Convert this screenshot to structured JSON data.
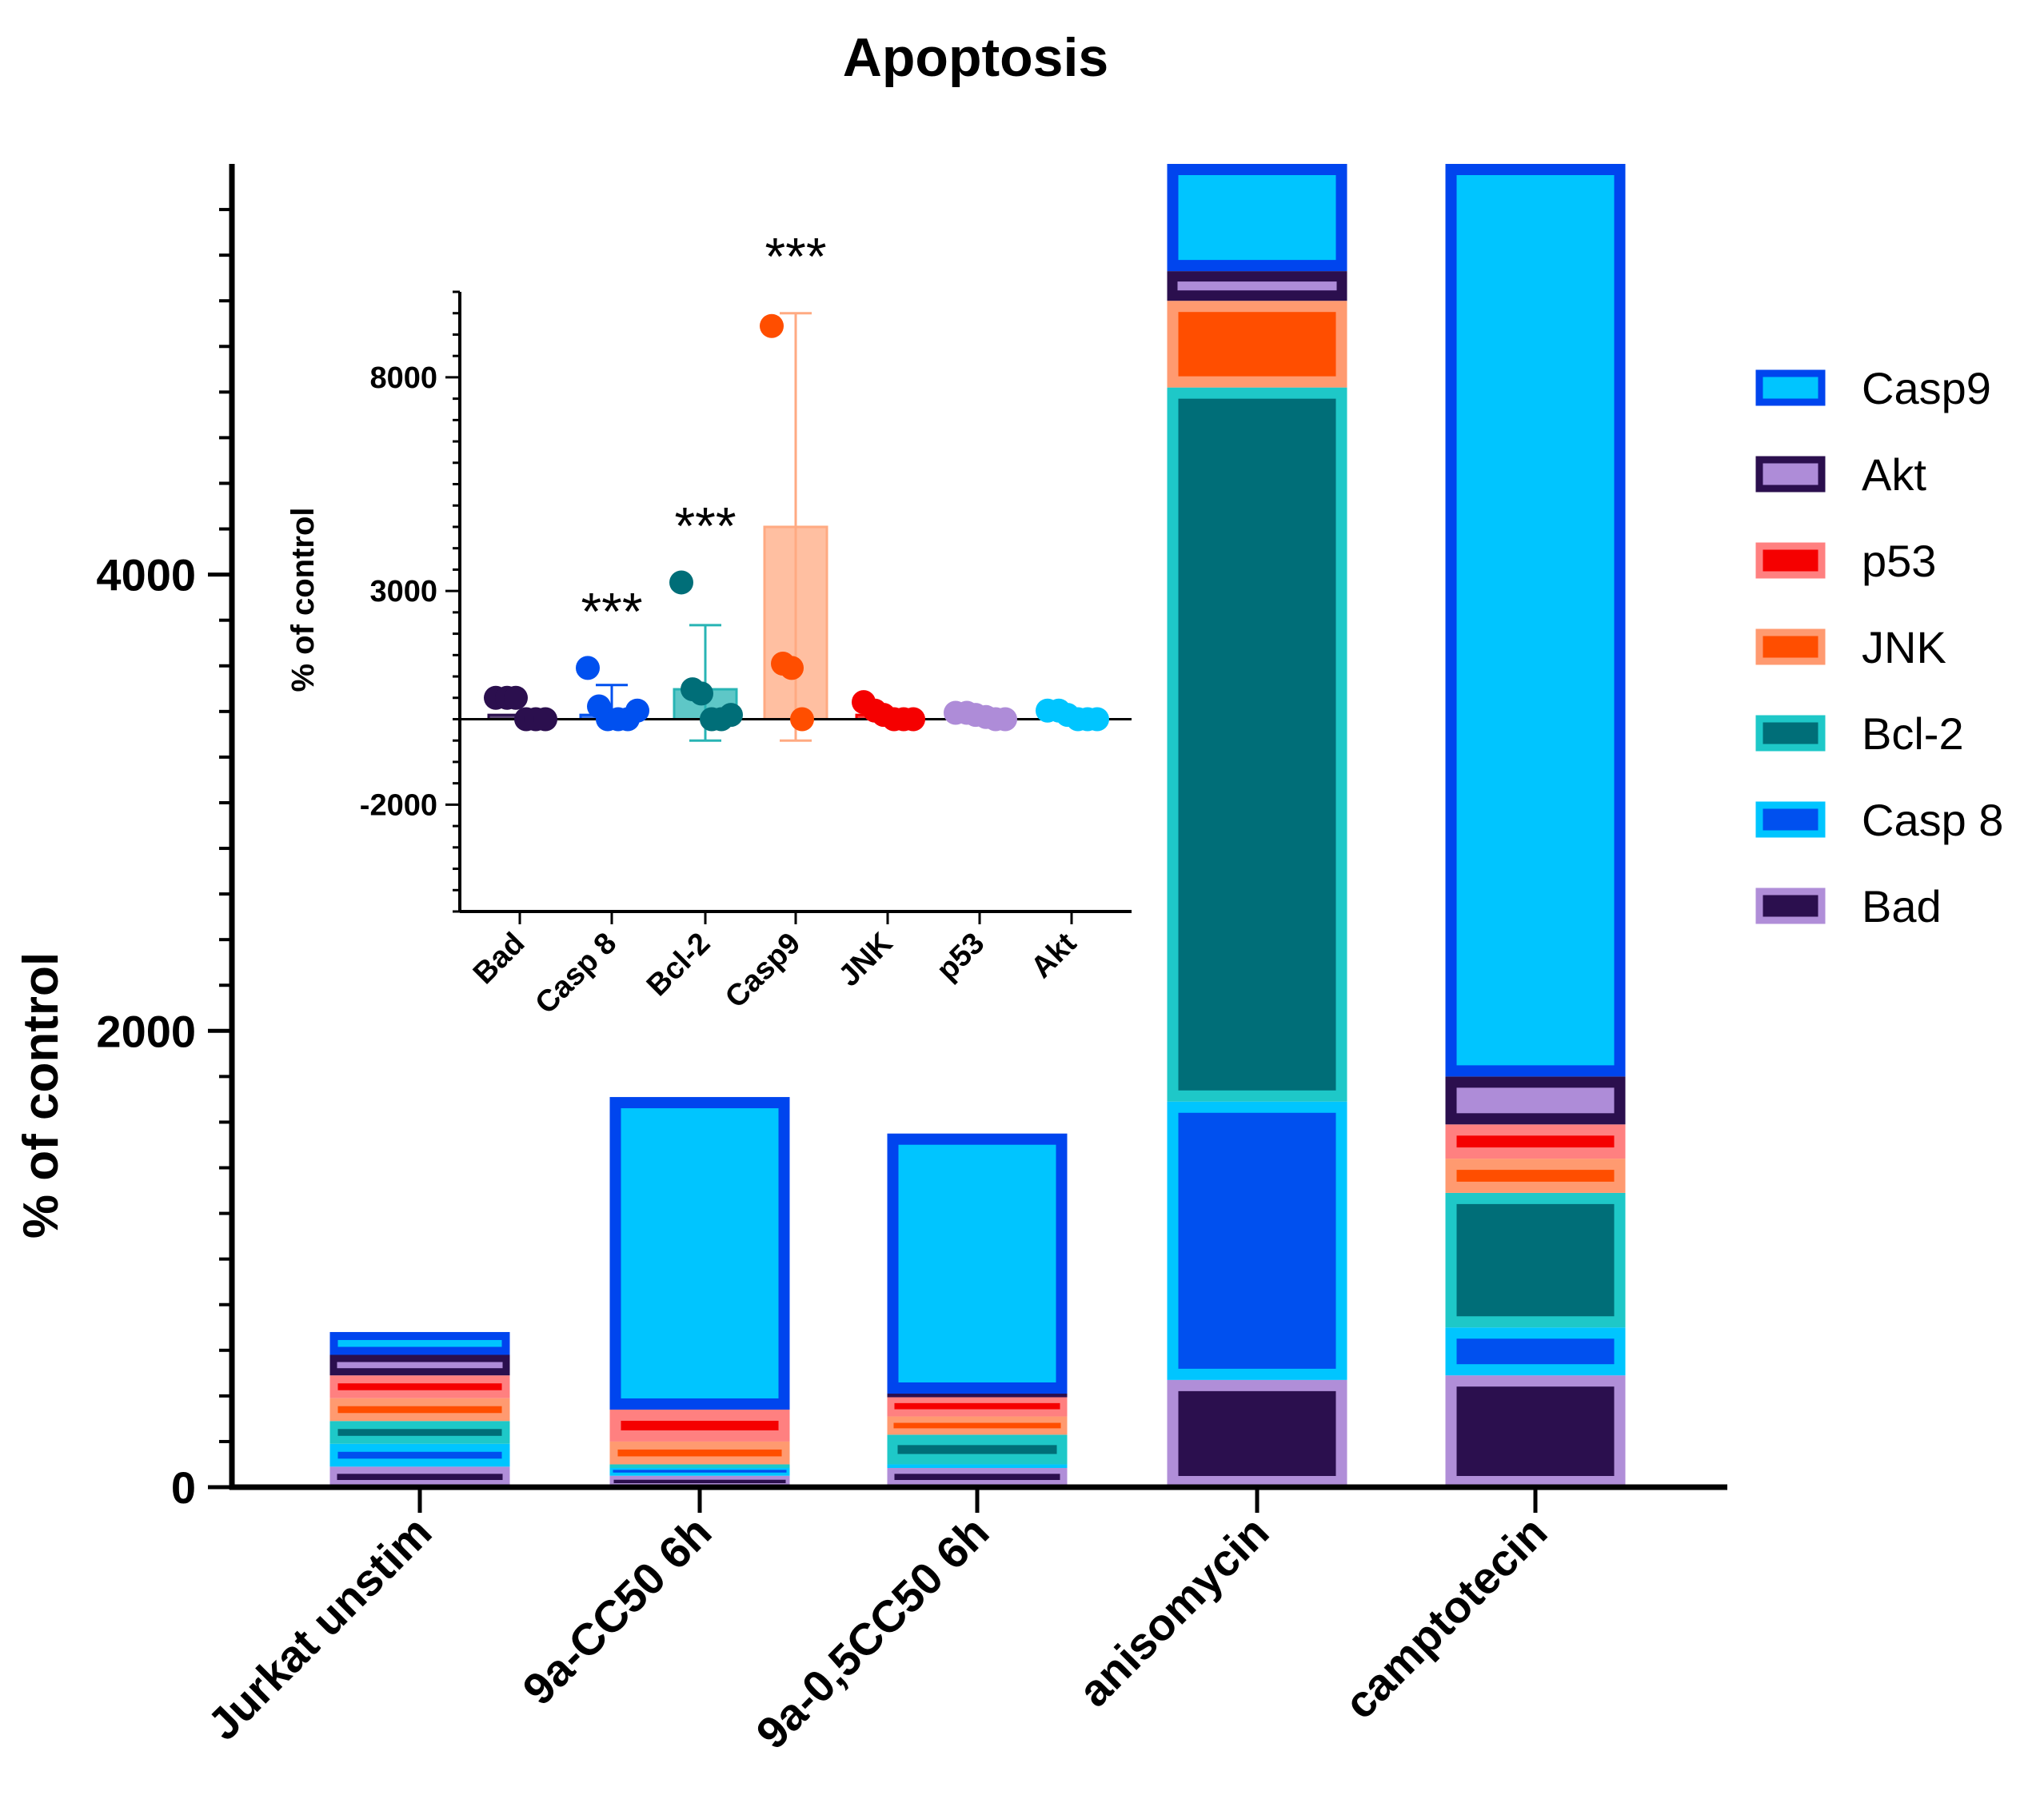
{
  "chart_data": [
    {
      "type": "bar",
      "stacked": true,
      "title": "Apoptosis",
      "xlabel": "",
      "ylabel": "% of control",
      "ylim": [
        0,
        5800
      ],
      "yticks": [
        0,
        2000,
        4000
      ],
      "categories": [
        "Jurkat unstim",
        "9a-CC50 6h",
        "9a-0,5CC50 6h",
        "anisomycin",
        "camptotecin"
      ],
      "series": [
        {
          "name": "Bad",
          "values": [
            90,
            50,
            90,
            470,
            490
          ],
          "fill": "#2B0F4E",
          "stroke": "#B08ED8"
        },
        {
          "name": "Casp 8",
          "values": [
            100,
            40,
            10,
            1220,
            210
          ],
          "fill": "#0050EF",
          "stroke": "#00C5FF"
        },
        {
          "name": "Bcl-2",
          "values": [
            100,
            10,
            130,
            3130,
            590
          ],
          "fill": "#006E78",
          "stroke": "#1EC8C8"
        },
        {
          "name": "JNK",
          "values": [
            100,
            100,
            80,
            380,
            150
          ],
          "fill": "#FF4E00",
          "stroke": "#FF9A70"
        },
        {
          "name": "p53",
          "values": [
            100,
            140,
            90,
            0,
            150
          ],
          "fill": "#F50000",
          "stroke": "#FF8080"
        },
        {
          "name": "Akt",
          "values": [
            90,
            0,
            10,
            130,
            210
          ],
          "fill": "#AE8CD8",
          "stroke": "#2B0F4E"
        },
        {
          "name": "Casp9",
          "values": [
            100,
            1370,
            1140,
            470,
            4070
          ],
          "fill": "#00C5FF",
          "stroke": "#0045EE"
        }
      ],
      "legend_position": "right",
      "legend_order": [
        "Casp9",
        "Akt",
        "p53",
        "JNK",
        "Bcl-2",
        "Casp 8",
        "Bad"
      ]
    },
    {
      "type": "bar",
      "inset": true,
      "with_points": true,
      "title": "",
      "xlabel": "",
      "ylabel": "% of control",
      "ylim": [
        -4500,
        10000
      ],
      "yticks": [
        -2000,
        3000,
        8000
      ],
      "categories": [
        "Bad",
        "Casp 8",
        "Bcl-2",
        "Casp9",
        "JNK",
        "p53",
        "Akt"
      ],
      "means": [
        100,
        100,
        700,
        4500,
        100,
        100,
        50
      ],
      "error_upper": [
        100,
        800,
        2200,
        9500,
        200,
        100,
        100
      ],
      "error_lower": [
        100,
        100,
        -500,
        -500,
        50,
        50,
        50
      ],
      "points": [
        [
          500,
          500,
          500,
          0,
          0,
          0
        ],
        [
          1200,
          300,
          0,
          0,
          0,
          200
        ],
        [
          3200,
          700,
          600,
          0,
          0,
          100
        ],
        [
          9200,
          1300,
          1200,
          0
        ],
        [
          400,
          200,
          100,
          0,
          0,
          0
        ],
        [
          150,
          150,
          100,
          50,
          0,
          0
        ],
        [
          200,
          200,
          100,
          0,
          0,
          0
        ]
      ],
      "significance": [
        "",
        "***",
        "***",
        "***",
        "",
        "",
        ""
      ],
      "colors": [
        "#2B0F4E",
        "#0050EF",
        "#006E78",
        "#FF4E00",
        "#F50000",
        "#AE8CD8",
        "#00C5FF"
      ],
      "bar_colors": [
        "#2B0F4E",
        "#0050EF",
        "#28B4B4",
        "#FFAA82",
        "#F50000",
        "#AE8CD8",
        "#00C5FF"
      ]
    }
  ]
}
